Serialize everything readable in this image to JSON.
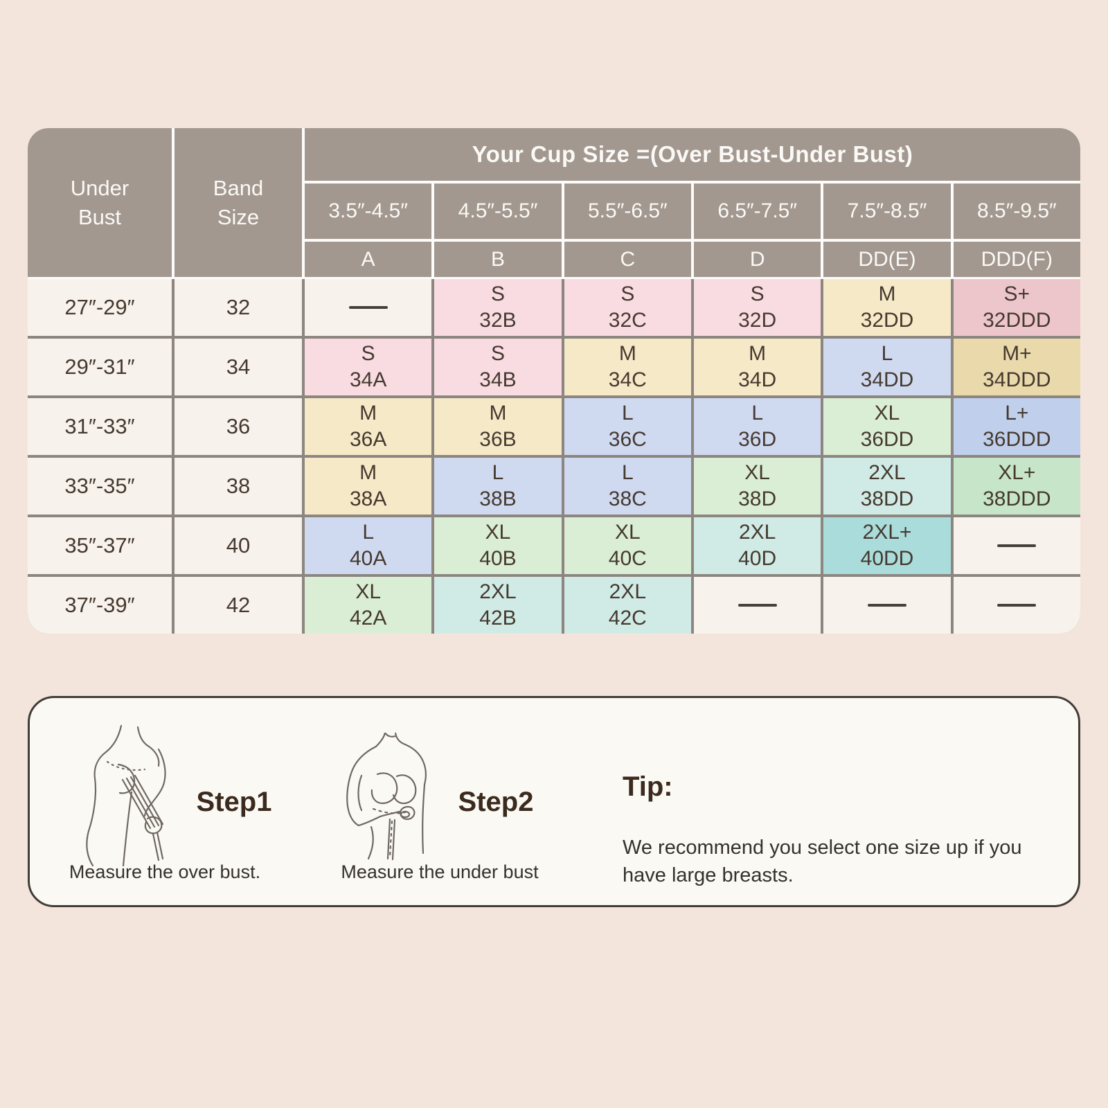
{
  "table": {
    "header": {
      "under_bust": "Under\nBust",
      "band_size": "Band\nSize",
      "cup_title": "Your Cup Size =(Over Bust-Under Bust)",
      "cup_ranges": [
        "3.5″-4.5″",
        "4.5″-5.5″",
        "5.5″-6.5″",
        "6.5″-7.5″",
        "7.5″-8.5″",
        "8.5″-9.5″"
      ],
      "cup_letters": [
        "A",
        "B",
        "C",
        "D",
        "DD(E)",
        "DDD(F)"
      ]
    },
    "palette": {
      "default": "#f8f2ec",
      "pink": "#f8dce2",
      "rose": "#edc6cc",
      "yellow": "#f6e9c8",
      "tan": "#e9d9ab",
      "blue": "#cfdaf1",
      "blue2": "#c0cfec",
      "green": "#daeed5",
      "green2": "#c7e6c9",
      "teal": "#d0ebe6",
      "teal2": "#aadcdb",
      "gridline": "#8d8680",
      "header_bg": "#a29890",
      "dash": "#46403b"
    },
    "rows": [
      {
        "under_bust": "27″-29″",
        "band": "32",
        "cells": [
          {
            "dash": true
          },
          {
            "size": "S",
            "code": "32B",
            "color": "pink"
          },
          {
            "size": "S",
            "code": "32C",
            "color": "pink"
          },
          {
            "size": "S",
            "code": "32D",
            "color": "pink"
          },
          {
            "size": "M",
            "code": "32DD",
            "color": "yellow"
          },
          {
            "size": "S+",
            "code": "32DDD",
            "color": "rose"
          }
        ]
      },
      {
        "under_bust": "29″-31″",
        "band": "34",
        "cells": [
          {
            "size": "S",
            "code": "34A",
            "color": "pink"
          },
          {
            "size": "S",
            "code": "34B",
            "color": "pink"
          },
          {
            "size": "M",
            "code": "34C",
            "color": "yellow"
          },
          {
            "size": "M",
            "code": "34D",
            "color": "yellow"
          },
          {
            "size": "L",
            "code": "34DD",
            "color": "blue"
          },
          {
            "size": "M+",
            "code": "34DDD",
            "color": "tan"
          }
        ]
      },
      {
        "under_bust": "31″-33″",
        "band": "36",
        "cells": [
          {
            "size": "M",
            "code": "36A",
            "color": "yellow"
          },
          {
            "size": "M",
            "code": "36B",
            "color": "yellow"
          },
          {
            "size": "L",
            "code": "36C",
            "color": "blue"
          },
          {
            "size": "L",
            "code": "36D",
            "color": "blue"
          },
          {
            "size": "XL",
            "code": "36DD",
            "color": "green"
          },
          {
            "size": "L+",
            "code": "36DDD",
            "color": "blue2"
          }
        ]
      },
      {
        "under_bust": "33″-35″",
        "band": "38",
        "cells": [
          {
            "size": "M",
            "code": "38A",
            "color": "yellow"
          },
          {
            "size": "L",
            "code": "38B",
            "color": "blue"
          },
          {
            "size": "L",
            "code": "38C",
            "color": "blue"
          },
          {
            "size": "XL",
            "code": "38D",
            "color": "green"
          },
          {
            "size": "2XL",
            "code": "38DD",
            "color": "teal"
          },
          {
            "size": "XL+",
            "code": "38DDD",
            "color": "green2"
          }
        ]
      },
      {
        "under_bust": "35″-37″",
        "band": "40",
        "cells": [
          {
            "size": "L",
            "code": "40A",
            "color": "blue"
          },
          {
            "size": "XL",
            "code": "40B",
            "color": "green"
          },
          {
            "size": "XL",
            "code": "40C",
            "color": "green"
          },
          {
            "size": "2XL",
            "code": "40D",
            "color": "teal"
          },
          {
            "size": "2XL+",
            "code": "40DD",
            "color": "teal2"
          },
          {
            "dash": true
          }
        ]
      },
      {
        "under_bust": "37″-39″",
        "band": "42",
        "cells": [
          {
            "size": "XL",
            "code": "42A",
            "color": "green"
          },
          {
            "size": "2XL",
            "code": "42B",
            "color": "teal"
          },
          {
            "size": "2XL",
            "code": "42C",
            "color": "teal"
          },
          {
            "dash": true
          },
          {
            "dash": true
          },
          {
            "dash": true
          }
        ]
      }
    ]
  },
  "guide": {
    "step1": {
      "title": "Step1",
      "caption": "Measure the over bust."
    },
    "step2": {
      "title": "Step2",
      "caption": "Measure the under bust"
    },
    "tip": {
      "title": "Tip:",
      "text": "We recommend you select one size up if you have large breasts."
    }
  },
  "chart_data": {
    "type": "table",
    "title": "Your Cup Size =(Over Bust-Under Bust)",
    "columns": [
      "Under Bust",
      "Band Size",
      "A (3.5″-4.5″)",
      "B (4.5″-5.5″)",
      "C (5.5″-6.5″)",
      "D (6.5″-7.5″)",
      "DD(E) (7.5″-8.5″)",
      "DDD(F) (8.5″-9.5″)"
    ],
    "rows": [
      [
        "27″-29″",
        "32",
        "—",
        "S 32B",
        "S 32C",
        "S 32D",
        "M 32DD",
        "S+ 32DDD"
      ],
      [
        "29″-31″",
        "34",
        "S 34A",
        "S 34B",
        "M 34C",
        "M 34D",
        "L 34DD",
        "M+ 34DDD"
      ],
      [
        "31″-33″",
        "36",
        "M 36A",
        "M 36B",
        "L 36C",
        "L 36D",
        "XL 36DD",
        "L+ 36DDD"
      ],
      [
        "33″-35″",
        "38",
        "M 38A",
        "L 38B",
        "L 38C",
        "XL 38D",
        "2XL 38DD",
        "XL+ 38DDD"
      ],
      [
        "35″-37″",
        "40",
        "L 40A",
        "XL 40B",
        "XL 40C",
        "2XL 40D",
        "2XL+ 40DD",
        "—"
      ],
      [
        "37″-39″",
        "42",
        "XL 42A",
        "2XL 42B",
        "2XL 42C",
        "—",
        "—",
        "—"
      ]
    ],
    "legend_note": "Cell colors encode size: S pink, M yellow, L blue, XL green, 2XL teal; '+' variants are darker shades; '—' means not available."
  }
}
